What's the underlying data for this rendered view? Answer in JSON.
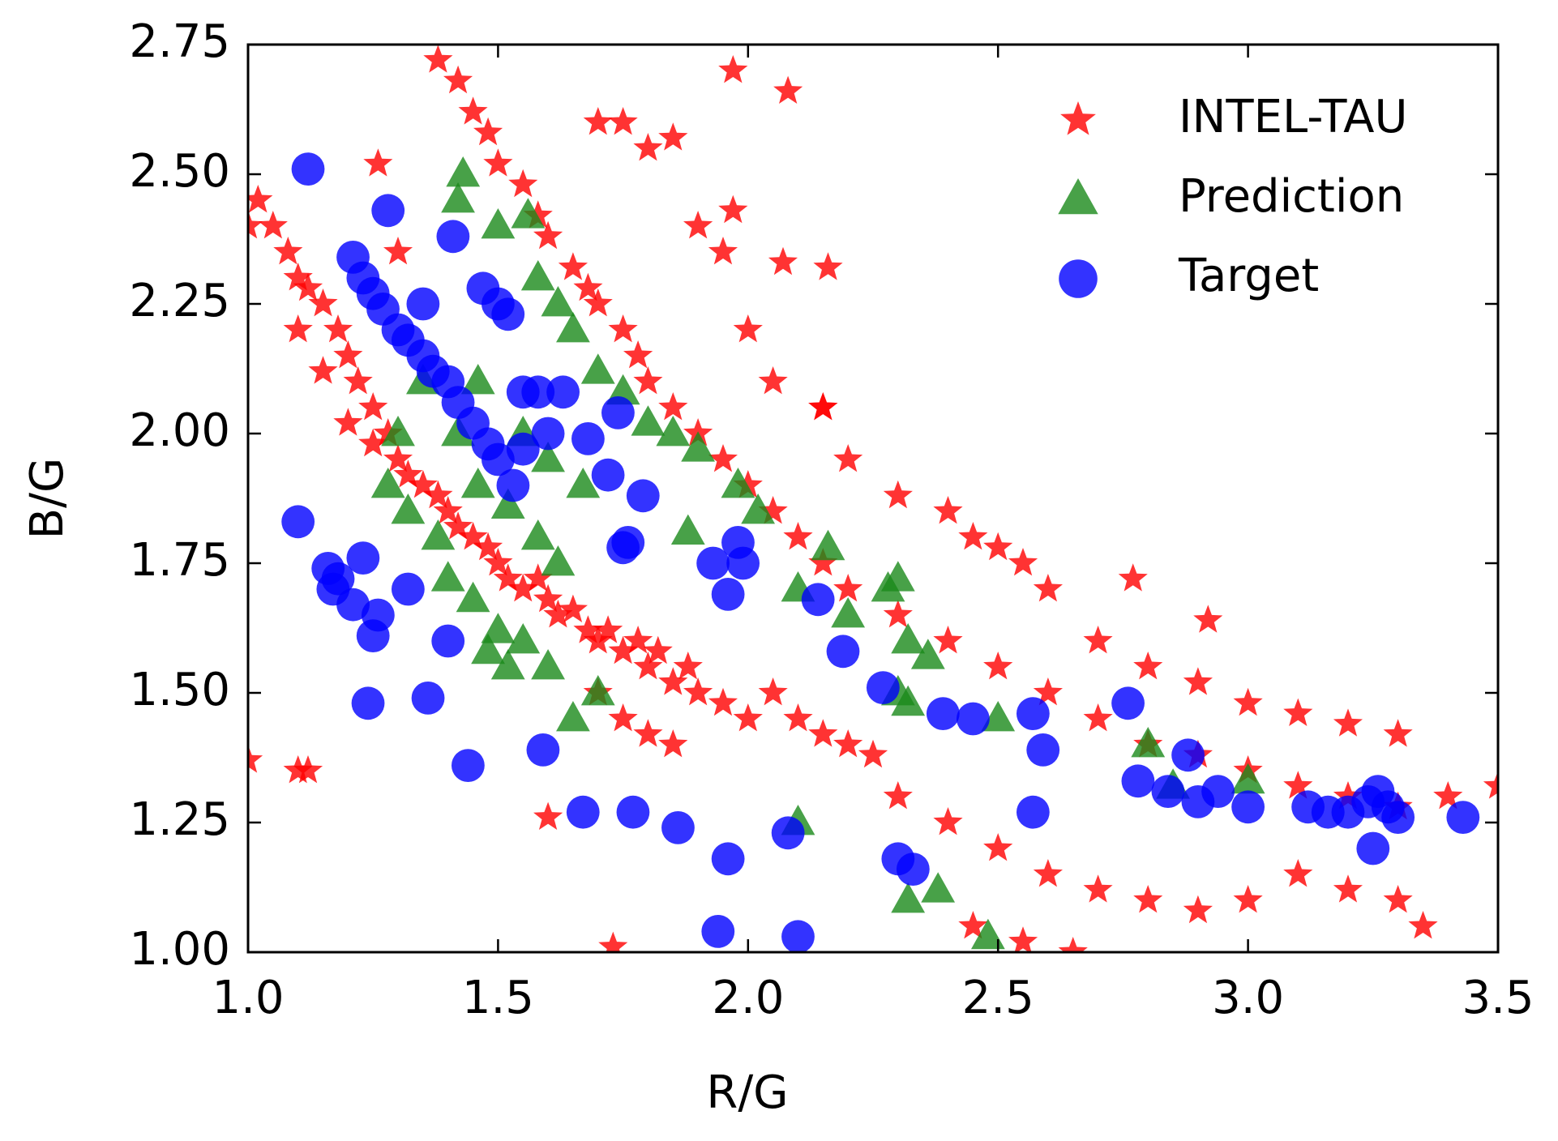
{
  "chart_data": {
    "type": "scatter",
    "xlabel": "R/G",
    "ylabel": "B/G",
    "xlim": [
      1.0,
      3.5
    ],
    "ylim": [
      1.0,
      2.75
    ],
    "xticks": [
      {
        "value": 1.0,
        "label": "1.0"
      },
      1.5,
      {
        "value": 2.0,
        "label": "2.0"
      },
      2.5,
      {
        "value": 3.0,
        "label": "3.0"
      },
      3.5
    ],
    "yticks": [
      {
        "value": 1.0,
        "label": "1.00"
      },
      1.25,
      {
        "value": 1.5,
        "label": "1.50"
      },
      1.75,
      {
        "value": 2.0,
        "label": "2.00"
      },
      2.25,
      {
        "value": 2.5,
        "label": "2.50"
      },
      2.75
    ],
    "legend": "upper right",
    "series": [
      {
        "name": "INTEL-TAU",
        "color": "#ff0000",
        "marker": "star",
        "x": [
          1.02,
          1.05,
          1.08,
          1.1,
          1.12,
          1.15,
          1.1,
          1.18,
          1.2,
          1.15,
          1.22,
          1.25,
          1.2,
          1.28,
          1.3,
          1.25,
          1.32,
          1.35,
          1.38,
          1.4,
          1.42,
          1.45,
          1.48,
          1.5,
          1.52,
          1.55,
          1.58,
          1.6,
          1.62,
          1.65,
          1.68,
          1.7,
          1.72,
          1.75,
          1.78,
          1.8,
          1.82,
          1.85,
          1.88,
          1.9,
          1.95,
          2.0,
          2.05,
          2.1,
          2.15,
          2.2,
          2.25,
          1.7,
          1.75,
          1.8,
          1.85,
          1.38,
          1.42,
          1.45,
          1.48,
          1.5,
          1.55,
          1.58,
          1.6,
          1.65,
          1.68,
          1.7,
          1.75,
          1.78,
          1.8,
          1.85,
          1.9,
          1.95,
          2.0,
          2.05,
          2.1,
          2.15,
          2.2,
          2.3,
          2.4,
          2.5,
          2.6,
          2.7,
          2.8,
          2.9,
          3.0,
          3.1,
          3.2,
          3.3,
          3.4,
          3.5,
          1.7,
          1.8,
          1.9,
          1.95,
          2.0,
          2.05,
          2.15,
          2.2,
          2.3,
          2.4,
          2.45,
          2.5,
          2.55,
          2.6,
          2.7,
          2.8,
          2.9,
          3.0,
          3.1,
          3.2,
          3.3,
          2.3,
          2.4,
          2.5,
          2.6,
          2.7,
          2.8,
          2.9,
          3.0,
          3.1,
          3.2,
          3.3,
          3.35,
          2.45,
          2.55,
          2.65,
          1.0,
          1.1,
          1.12,
          1.6,
          1.73,
          1.97,
          2.08,
          2.07,
          2.16,
          1.97,
          1.85,
          1.75,
          2.15,
          2.77,
          2.92,
          1.26,
          1.0,
          1.3
        ],
        "y": [
          2.45,
          2.4,
          2.35,
          2.3,
          2.28,
          2.25,
          2.2,
          2.2,
          2.15,
          2.12,
          2.1,
          2.05,
          2.02,
          2.0,
          1.95,
          1.98,
          1.92,
          1.9,
          1.88,
          1.85,
          1.82,
          1.8,
          1.78,
          1.75,
          1.72,
          1.7,
          1.72,
          1.68,
          1.65,
          1.66,
          1.62,
          1.6,
          1.62,
          1.58,
          1.6,
          1.55,
          1.58,
          1.52,
          1.55,
          1.5,
          1.48,
          1.45,
          1.5,
          1.45,
          1.42,
          1.4,
          1.38,
          1.5,
          1.45,
          1.42,
          1.4,
          2.72,
          2.68,
          2.62,
          2.58,
          2.52,
          2.48,
          2.42,
          2.38,
          2.32,
          2.28,
          2.25,
          2.2,
          2.15,
          2.1,
          2.05,
          2.0,
          1.95,
          1.9,
          1.85,
          1.8,
          1.75,
          1.7,
          1.65,
          1.6,
          1.55,
          1.5,
          1.45,
          1.4,
          1.38,
          1.35,
          1.32,
          1.3,
          1.28,
          1.3,
          1.32,
          2.6,
          2.55,
          2.4,
          2.35,
          2.2,
          2.1,
          2.05,
          1.95,
          1.88,
          1.85,
          1.8,
          1.78,
          1.75,
          1.7,
          1.6,
          1.55,
          1.52,
          1.48,
          1.46,
          1.44,
          1.42,
          1.3,
          1.25,
          1.2,
          1.15,
          1.12,
          1.1,
          1.08,
          1.1,
          1.15,
          1.12,
          1.1,
          1.05,
          1.05,
          1.02,
          1.0,
          1.37,
          1.35,
          1.35,
          1.26,
          1.01,
          2.7,
          2.66,
          2.33,
          2.32,
          2.43,
          2.57,
          2.6,
          2.05,
          1.72,
          1.64,
          2.52,
          2.4,
          2.35
        ]
      },
      {
        "name": "Prediction",
        "color": "#1a8a1a",
        "marker": "triangle",
        "x": [
          1.43,
          1.42,
          1.5,
          1.56,
          1.58,
          1.62,
          1.65,
          1.7,
          1.75,
          1.8,
          1.85,
          1.9,
          1.98,
          2.02,
          1.88,
          2.16,
          2.1,
          2.2,
          2.28,
          2.3,
          2.32,
          2.36,
          2.3,
          2.32,
          2.5,
          2.8,
          2.85,
          3.0,
          2.1,
          2.32,
          2.38,
          2.48,
          1.35,
          1.3,
          1.28,
          1.32,
          1.38,
          1.4,
          1.45,
          1.5,
          1.48,
          1.52,
          1.55,
          1.6,
          1.65,
          1.7,
          1.46,
          1.52,
          1.58,
          1.62,
          1.42,
          1.46,
          1.55,
          1.6,
          1.67
        ],
        "y": [
          2.5,
          2.45,
          2.4,
          2.42,
          2.3,
          2.25,
          2.2,
          2.12,
          2.08,
          2.02,
          2.0,
          1.97,
          1.9,
          1.85,
          1.81,
          1.78,
          1.7,
          1.65,
          1.7,
          1.72,
          1.6,
          1.57,
          1.5,
          1.48,
          1.45,
          1.4,
          1.32,
          1.33,
          1.25,
          1.1,
          1.12,
          1.03,
          2.1,
          2.0,
          1.9,
          1.85,
          1.8,
          1.72,
          1.68,
          1.62,
          1.58,
          1.55,
          1.6,
          1.55,
          1.45,
          1.5,
          1.9,
          1.86,
          1.8,
          1.75,
          2.0,
          2.1,
          2.0,
          1.95,
          1.9
        ]
      },
      {
        "name": "Target",
        "color": "#0000ff",
        "marker": "circle",
        "x": [
          1.12,
          1.28,
          1.41,
          1.21,
          1.23,
          1.25,
          1.27,
          1.3,
          1.32,
          1.35,
          1.37,
          1.4,
          1.42,
          1.45,
          1.48,
          1.5,
          1.53,
          1.35,
          1.47,
          1.5,
          1.52,
          1.55,
          1.58,
          1.63,
          1.6,
          1.55,
          1.68,
          1.74,
          1.72,
          1.79,
          1.76,
          1.75,
          1.93,
          1.98,
          1.99,
          1.96,
          2.14,
          2.19,
          2.27,
          2.39,
          2.45,
          2.57,
          2.59,
          2.76,
          2.78,
          2.84,
          2.88,
          2.9,
          2.94,
          3.0,
          3.12,
          3.16,
          3.2,
          3.24,
          3.26,
          3.28,
          3.3,
          3.25,
          3.43,
          2.57,
          2.3,
          2.33,
          2.08,
          1.96,
          1.94,
          2.1,
          1.86,
          1.77,
          1.67,
          1.59,
          1.44,
          1.36,
          1.24,
          1.4,
          1.32,
          1.26,
          1.25,
          1.21,
          1.17,
          1.18,
          1.16,
          1.23,
          1.1
        ],
        "y": [
          2.51,
          2.43,
          2.38,
          2.34,
          2.3,
          2.27,
          2.24,
          2.2,
          2.18,
          2.15,
          2.12,
          2.1,
          2.06,
          2.02,
          1.98,
          1.95,
          1.9,
          2.25,
          2.28,
          2.25,
          2.23,
          2.08,
          2.08,
          2.08,
          2.0,
          1.97,
          1.99,
          2.04,
          1.92,
          1.88,
          1.79,
          1.78,
          1.75,
          1.79,
          1.75,
          1.69,
          1.68,
          1.58,
          1.51,
          1.46,
          1.45,
          1.46,
          1.39,
          1.48,
          1.33,
          1.31,
          1.38,
          1.29,
          1.31,
          1.28,
          1.28,
          1.27,
          1.27,
          1.29,
          1.31,
          1.28,
          1.26,
          1.2,
          1.26,
          1.27,
          1.18,
          1.16,
          1.23,
          1.18,
          1.04,
          1.03,
          1.24,
          1.27,
          1.27,
          1.39,
          1.36,
          1.49,
          1.48,
          1.6,
          1.7,
          1.65,
          1.61,
          1.67,
          1.7,
          1.72,
          1.74,
          1.76,
          1.83
        ]
      }
    ]
  }
}
